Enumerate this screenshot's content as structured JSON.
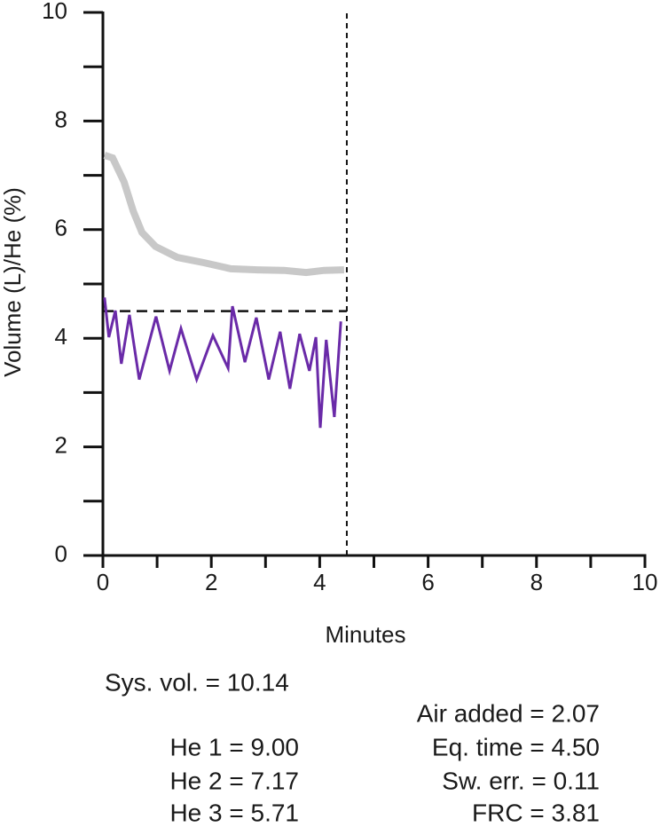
{
  "chart_data": {
    "type": "line",
    "x_label": "Minutes",
    "y_label": "Volume (L)/He (%)",
    "xlim": [
      0,
      10
    ],
    "ylim": [
      0,
      10
    ],
    "xticks": [
      0,
      2,
      4,
      6,
      8,
      10
    ],
    "yticks": [
      0,
      2,
      4,
      6,
      8,
      10
    ],
    "xticks_minor": [
      1,
      3,
      5,
      7,
      9
    ],
    "yticks_minor": [
      1,
      3,
      5,
      7,
      9
    ],
    "series": [
      {
        "color": "#c8c8c8",
        "width": 8,
        "x": [
          0.03,
          0.18,
          0.39,
          0.56,
          0.72,
          0.97,
          1.37,
          1.87,
          2.36,
          2.85,
          3.34,
          3.75,
          4.08,
          4.45
        ],
        "values": [
          7.37,
          7.32,
          6.88,
          6.34,
          5.95,
          5.69,
          5.49,
          5.39,
          5.28,
          5.26,
          5.25,
          5.21,
          5.25,
          5.26
        ]
      },
      {
        "color": "#6a2aa8",
        "width": 3,
        "x": [
          0.03,
          0.11,
          0.23,
          0.34,
          0.49,
          0.67,
          0.98,
          1.23,
          1.44,
          1.73,
          2.03,
          2.31,
          2.39,
          2.62,
          2.83,
          3.06,
          3.27,
          3.45,
          3.63,
          3.81,
          3.93,
          4.01,
          4.12,
          4.27,
          4.39
        ],
        "values": [
          4.75,
          4.02,
          4.51,
          3.53,
          4.43,
          3.24,
          4.4,
          3.4,
          4.18,
          3.24,
          4.05,
          3.45,
          4.59,
          3.56,
          4.38,
          3.24,
          4.12,
          3.07,
          4.08,
          3.4,
          4.02,
          2.35,
          3.97,
          2.55,
          4.31
        ]
      }
    ],
    "reference_lines": [
      {
        "orientation": "horizontal",
        "value": 4.5,
        "from": 0,
        "to": 4.5,
        "dash": "long"
      },
      {
        "orientation": "vertical",
        "value": 4.5,
        "from": 0,
        "to": 10,
        "dash": "short"
      }
    ],
    "annotations": [
      "Sys. vol. = 10.14",
      "Air added = 2.07",
      "He 1 = 9.00",
      "Eq. time = 4.50",
      "He 2 = 7.17",
      "Sw. err. = 0.11",
      "He 3 = 5.71",
      "FRC = 3.81"
    ]
  }
}
